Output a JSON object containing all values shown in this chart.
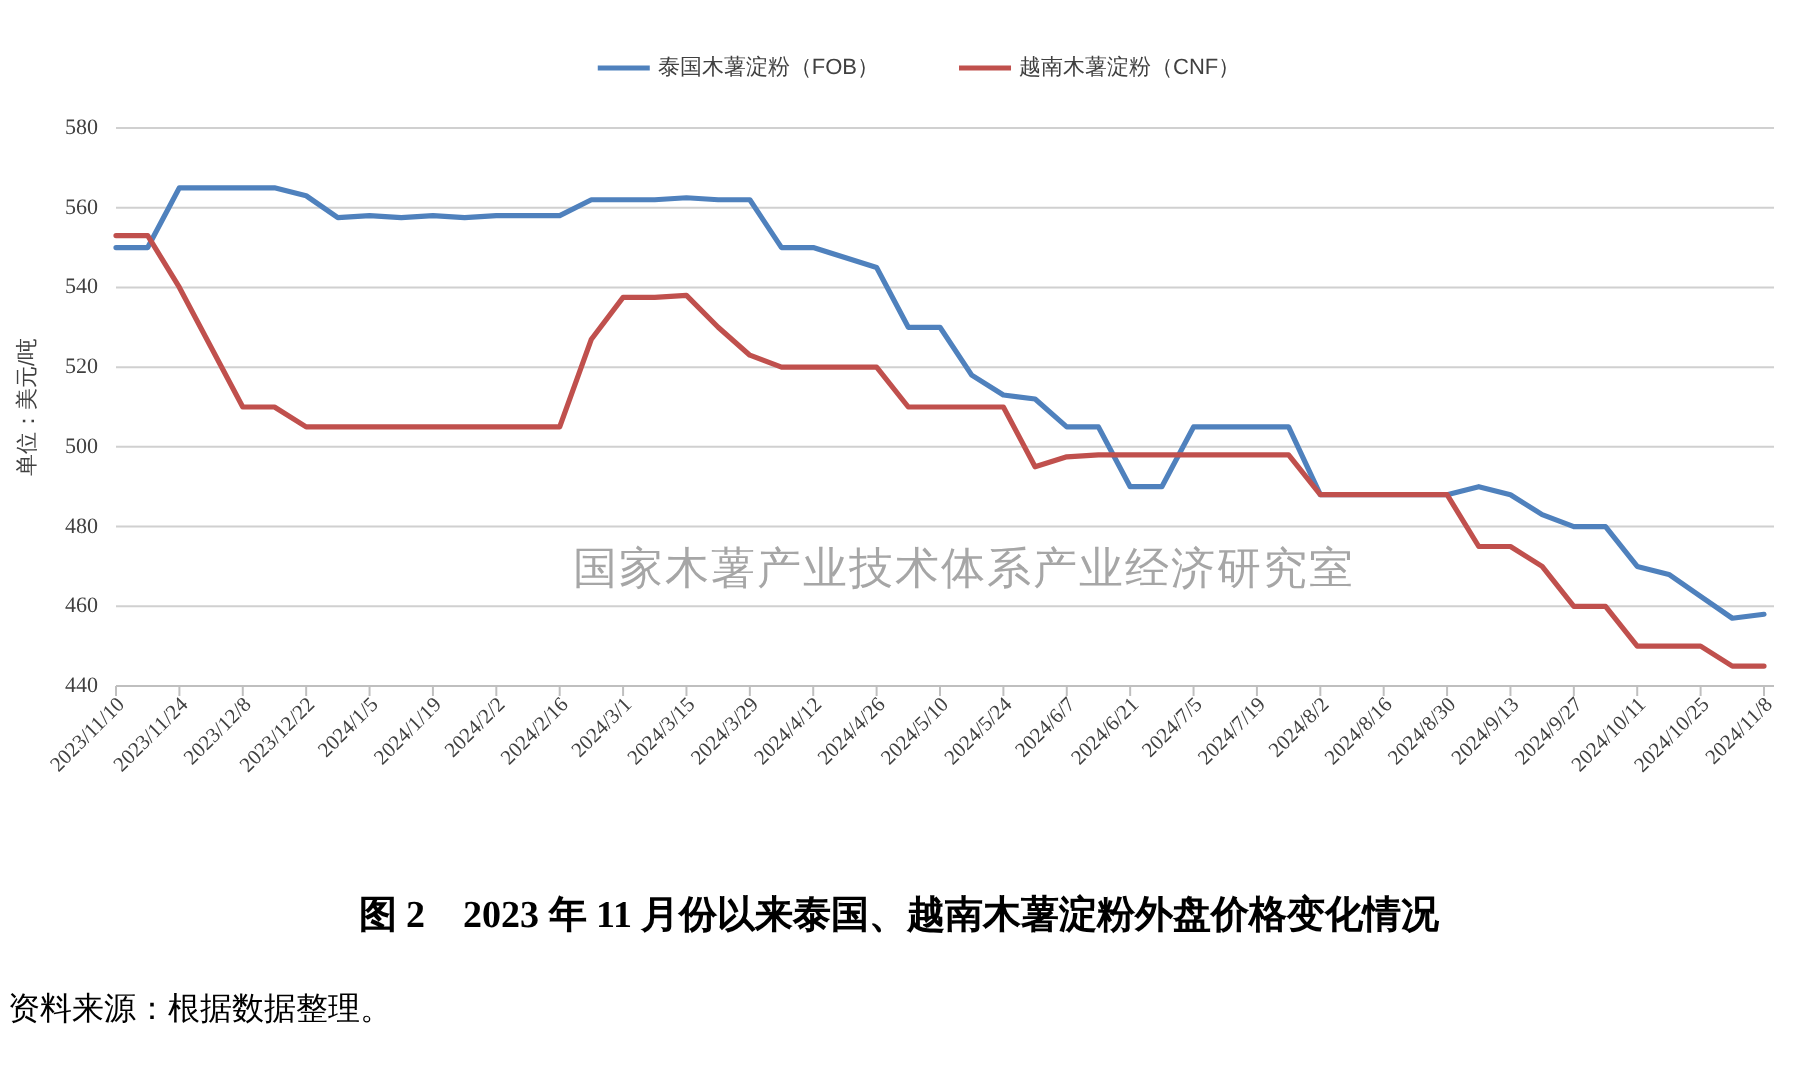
{
  "chart_data": {
    "type": "line",
    "title": "图 2    2023 年 11 月份以来泰国、越南木薯淀粉外盘价格变化情况",
    "ylabel": "单位：美元/吨",
    "categories": [
      "2023/11/10",
      null,
      "2023/11/24",
      null,
      "2023/12/8",
      null,
      "2023/12/22",
      null,
      "2024/1/5",
      null,
      "2024/1/19",
      null,
      "2024/2/2",
      null,
      "2024/2/16",
      null,
      "2024/3/1",
      null,
      "2024/3/15",
      null,
      "2024/3/29",
      null,
      "2024/4/12",
      null,
      "2024/4/26",
      null,
      "2024/5/10",
      null,
      "2024/5/24",
      null,
      "2024/6/7",
      null,
      "2024/6/21",
      null,
      "2024/7/5",
      null,
      "2024/7/19",
      null,
      "2024/8/2",
      null,
      "2024/8/16",
      null,
      "2024/8/30",
      null,
      "2024/9/13",
      null,
      "2024/9/27",
      null,
      "2024/10/11",
      null,
      "2024/10/25",
      null,
      "2024/11/8"
    ],
    "series": [
      {
        "name": "泰国木薯淀粉（FOB）",
        "color": "#4f81bd",
        "values": [
          550,
          550,
          565,
          565,
          565,
          565,
          563,
          557.5,
          558,
          557.5,
          558,
          557.5,
          558,
          558,
          558,
          562,
          562,
          562,
          562.5,
          562,
          562,
          550,
          550,
          547.5,
          545,
          530,
          530,
          518,
          513,
          512,
          505,
          505,
          490,
          490,
          505,
          505,
          505,
          505,
          488,
          488,
          488,
          488,
          488,
          490,
          488,
          483,
          480,
          480,
          470,
          468,
          462.5,
          457,
          458
        ]
      },
      {
        "name": "越南木薯淀粉（CNF）",
        "color": "#c0504d",
        "values": [
          553,
          553,
          540,
          525,
          510,
          510,
          505,
          505,
          505,
          505,
          505,
          505,
          505,
          505,
          505,
          527,
          537.5,
          537.5,
          538,
          530,
          523,
          520,
          520,
          520,
          520,
          510,
          510,
          510,
          510,
          495,
          497.5,
          498,
          498,
          498,
          498,
          498,
          498,
          498,
          488,
          488,
          488,
          488,
          488,
          475,
          475,
          470,
          460,
          460,
          450,
          450,
          450,
          445,
          445
        ]
      }
    ],
    "ylim": [
      440,
      580
    ],
    "yticks": [
      440,
      460,
      480,
      500,
      520,
      540,
      560,
      580
    ],
    "grid": "y",
    "legend": "top",
    "annotations": [
      "国家木薯产业技术体系产业经济研究室",
      "资料来源：根据数据整理。"
    ]
  }
}
